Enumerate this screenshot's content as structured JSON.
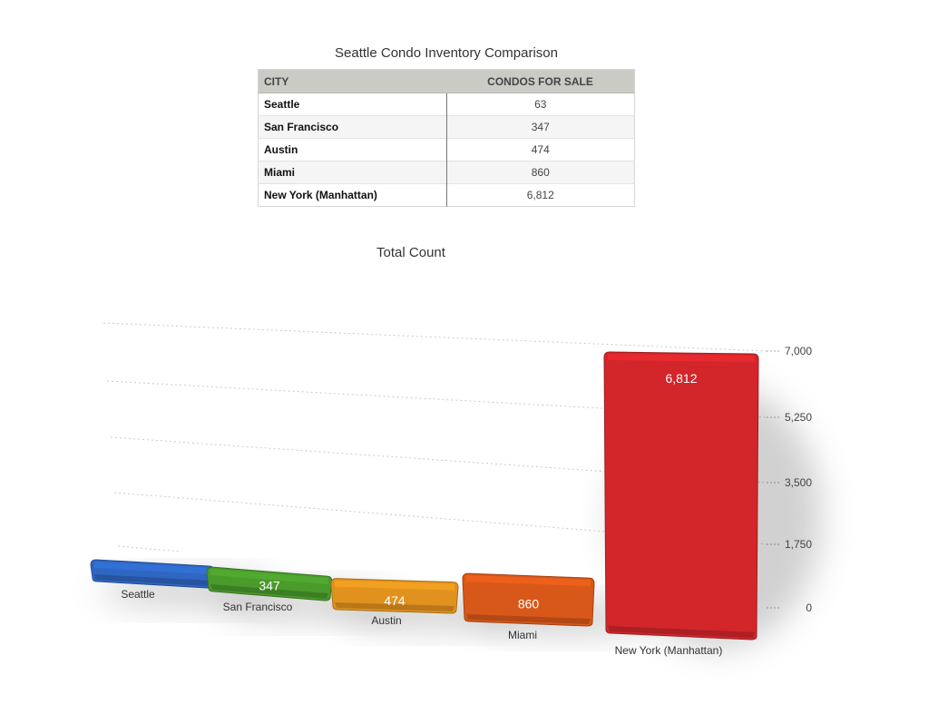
{
  "table": {
    "title": "Seattle Condo Inventory Comparison",
    "headers": {
      "city": "CITY",
      "count": "CONDOS FOR SALE"
    },
    "rows": [
      {
        "city": "Seattle",
        "count": "63"
      },
      {
        "city": "San Francisco",
        "count": "347"
      },
      {
        "city": "Austin",
        "count": "474"
      },
      {
        "city": "Miami",
        "count": "860"
      },
      {
        "city": "New York (Manhattan)",
        "count": "6,812"
      }
    ]
  },
  "chart_data": {
    "type": "bar",
    "title": "Total Count",
    "categories": [
      "Seattle",
      "San Francisco",
      "Austin",
      "Miami",
      "New York (Manhattan)"
    ],
    "values": [
      63,
      347,
      474,
      860,
      6812
    ],
    "data_labels": [
      "",
      "347",
      "474",
      "860",
      "6,812"
    ],
    "ylim": [
      0,
      7000
    ],
    "yticks": [
      0,
      1750,
      3500,
      5250,
      7000
    ],
    "ytick_labels": [
      "0",
      "1,750",
      "3,500",
      "5,250",
      "7,000"
    ],
    "y_axis_side": "right",
    "grid": true,
    "colors": [
      "#2f66c2",
      "#4a9a2c",
      "#e1921e",
      "#d8581a",
      "#d2262b"
    ]
  }
}
